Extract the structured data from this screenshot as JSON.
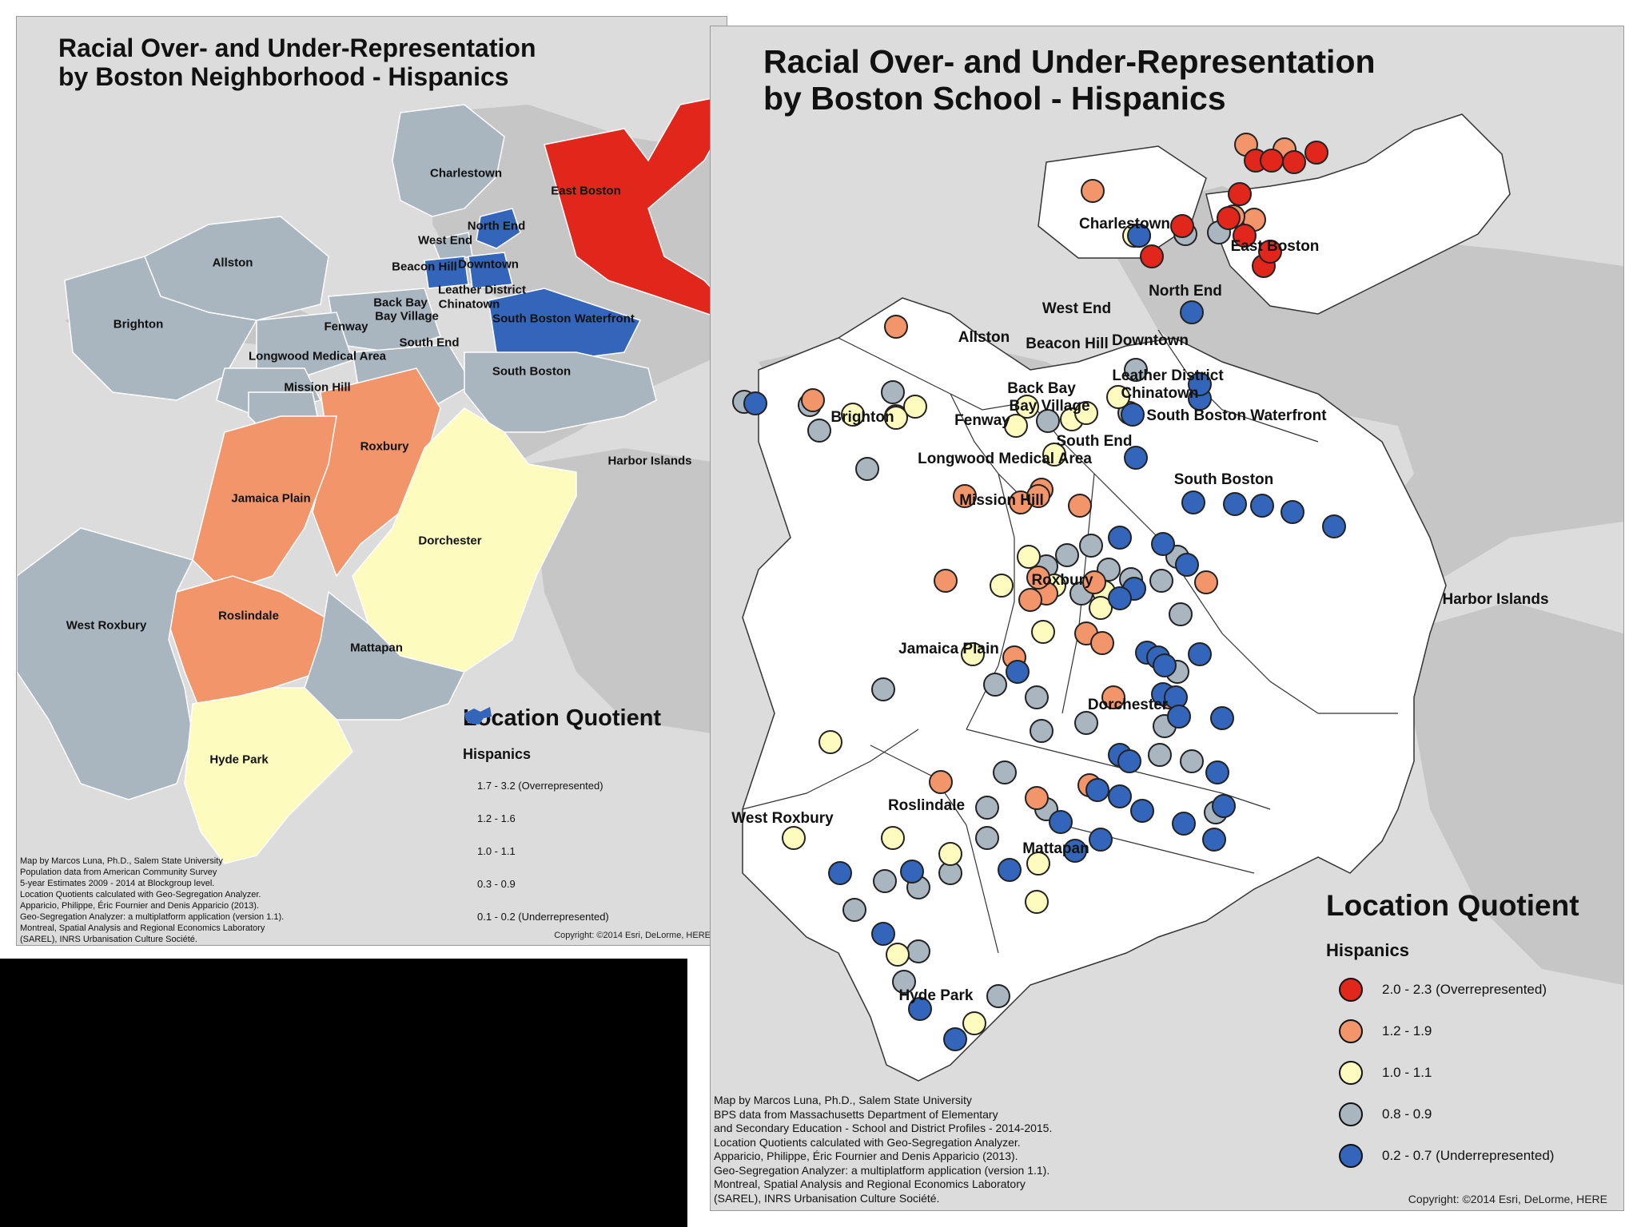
{
  "colors": {
    "overrepresented": "#e1261c",
    "high": "#f2956b",
    "neutral": "#fefbbf",
    "low": "#a9b6c0",
    "underrepresented": "#3366bb",
    "basemap": "#dcdcdc",
    "water": "#c6c6c6",
    "city": "#ffffff"
  },
  "left_map": {
    "title_line1": "Racial Over- and Under-Representation",
    "title_line2": "by Boston Neighborhood - Hispanics",
    "neighborhoods": [
      {
        "name": "Charlestown",
        "class": "low"
      },
      {
        "name": "East Boston",
        "class": "over"
      },
      {
        "name": "North End",
        "class": "under"
      },
      {
        "name": "West End",
        "class": "low"
      },
      {
        "name": "Allston",
        "class": "low"
      },
      {
        "name": "Beacon Hill",
        "class": "under"
      },
      {
        "name": "Downtown",
        "class": "under"
      },
      {
        "name": "Leather District",
        "class": "under"
      },
      {
        "name": "Chinatown",
        "class": "under"
      },
      {
        "name": "Back Bay",
        "class": "low"
      },
      {
        "name": "Bay Village",
        "class": "low"
      },
      {
        "name": "South Boston Waterfront",
        "class": "under"
      },
      {
        "name": "Brighton",
        "class": "low"
      },
      {
        "name": "Fenway",
        "class": "low"
      },
      {
        "name": "South End",
        "class": "low"
      },
      {
        "name": "Longwood Medical Area",
        "class": "low"
      },
      {
        "name": "South Boston",
        "class": "low"
      },
      {
        "name": "Mission Hill",
        "class": "low"
      },
      {
        "name": "Roxbury",
        "class": "high"
      },
      {
        "name": "Harbor Islands",
        "class": "none"
      },
      {
        "name": "Jamaica Plain",
        "class": "high"
      },
      {
        "name": "Dorchester",
        "class": "neutral"
      },
      {
        "name": "Roslindale",
        "class": "high"
      },
      {
        "name": "West Roxbury",
        "class": "low"
      },
      {
        "name": "Mattapan",
        "class": "low"
      },
      {
        "name": "Hyde Park",
        "class": "neutral"
      }
    ],
    "legend": {
      "title": "Location Quotient",
      "subtitle": "Hispanics",
      "items": [
        {
          "label": "1.7 - 3.2 (Overrepresented)",
          "color": "#e1261c"
        },
        {
          "label": "1.2 - 1.6",
          "color": "#f2956b"
        },
        {
          "label": "1.0 - 1.1",
          "color": "#fefbbf"
        },
        {
          "label": "0.3 - 0.9",
          "color": "#a9b6c0"
        },
        {
          "label": "0.1 - 0.2 (Underrepresented)",
          "color": "#3366bb"
        }
      ]
    },
    "credits": "Map by Marcos Luna, Ph.D., Salem State University\nPopulation data from American Community Survey\n5-year Estimates 2009 - 2014 at Blockgroup level.\nLocation Quotients calculated with Geo-Segregation Analyzer.\nApparicio, Philippe, Éric Fournier and Denis Apparicio (2013).\n Geo-Segregation Analyzer: a multiplatform application (version 1.1).\n Montreal, Spatial Analysis and Regional Economics Laboratory\n(SAREL), INRS Urbanisation Culture Société.",
    "copyright": "Copyright: ©2014 Esri, DeLorme, HERE"
  },
  "right_map": {
    "title_line1": "Racial Over- and Under-Representation",
    "title_line2": "by Boston School - Hispanics",
    "labels": [
      "Charlestown",
      "East Boston",
      "North End",
      "West End",
      "Allston",
      "Beacon Hill",
      "Downtown",
      "Leather District",
      "Chinatown",
      "Back Bay",
      "Bay Village",
      "South Boston Waterfront",
      "Brighton",
      "Fenway",
      "South End",
      "Longwood Medical Area",
      "South Boston",
      "Mission Hill",
      "Roxbury",
      "Harbor Islands",
      "Jamaica Plain",
      "Dorchester",
      "Roslindale",
      "West Roxbury",
      "Mattapan",
      "Hyde Park"
    ],
    "schools": [
      {
        "c": "over",
        "n": 11
      },
      {
        "c": "high",
        "n": 26
      },
      {
        "c": "neutral",
        "n": 24
      },
      {
        "c": "low",
        "n": 42
      },
      {
        "c": "under",
        "n": 44
      }
    ],
    "legend": {
      "title": "Location Quotient",
      "subtitle": "Hispanics",
      "items": [
        {
          "label": "2.0 - 2.3 (Overrepresented)",
          "color": "#e1261c"
        },
        {
          "label": "1.2 - 1.9",
          "color": "#f2956b"
        },
        {
          "label": "1.0 - 1.1",
          "color": "#fefbbf"
        },
        {
          "label": "0.8 - 0.9",
          "color": "#a9b6c0"
        },
        {
          "label": "0.2 - 0.7 (Underrepresented)",
          "color": "#3366bb"
        }
      ]
    },
    "credits": "Map by Marcos Luna, Ph.D., Salem State University\nBPS data from Massachusetts Department of Elementary\nand Secondary Education - School and District Profiles - 2014-2015.\nLocation Quotients calculated with Geo-Segregation Analyzer.\nApparicio, Philippe, Éric Fournier and Denis Apparicio (2013).\n Geo-Segregation Analyzer: a multiplatform application (version 1.1).\n Montreal, Spatial Analysis and Regional Economics Laboratory\n(SAREL), INRS Urbanisation Culture Société.",
    "copyright": "Copyright: ©2014 Esri, DeLorme, HERE"
  }
}
